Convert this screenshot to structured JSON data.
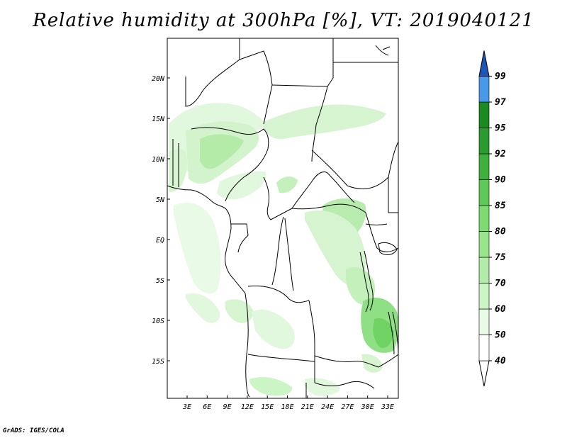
{
  "title": "Relative humidity at 300hPa [%], VT: 2019040121",
  "credit": "GrADS: IGES/COLA",
  "map": {
    "lat_ticks": [
      "20N",
      "15N",
      "10N",
      "5N",
      "EQ",
      "5S",
      "10S",
      "15S"
    ],
    "lon_ticks": [
      "3E",
      "6E",
      "9E",
      "12E",
      "15E",
      "18E",
      "21E",
      "24E",
      "27E",
      "30E",
      "33E"
    ]
  },
  "colorbar": {
    "levels": [
      {
        "label": "40",
        "color": "#ffffff"
      },
      {
        "label": "50",
        "color": "#e9fbe6"
      },
      {
        "label": "60",
        "color": "#ccf5c6"
      },
      {
        "label": "70",
        "color": "#b1eda8"
      },
      {
        "label": "75",
        "color": "#98e58c"
      },
      {
        "label": "80",
        "color": "#7ddb72"
      },
      {
        "label": "85",
        "color": "#5ec858"
      },
      {
        "label": "90",
        "color": "#3fb03e"
      },
      {
        "label": "92",
        "color": "#2a9b2e"
      },
      {
        "label": "95",
        "color": "#1a8a21"
      },
      {
        "label": "97",
        "color": "#4a98e8"
      },
      {
        "label": "99",
        "color": "#2f74d6"
      }
    ],
    "top_arrow_color": "#1d55b8"
  }
}
